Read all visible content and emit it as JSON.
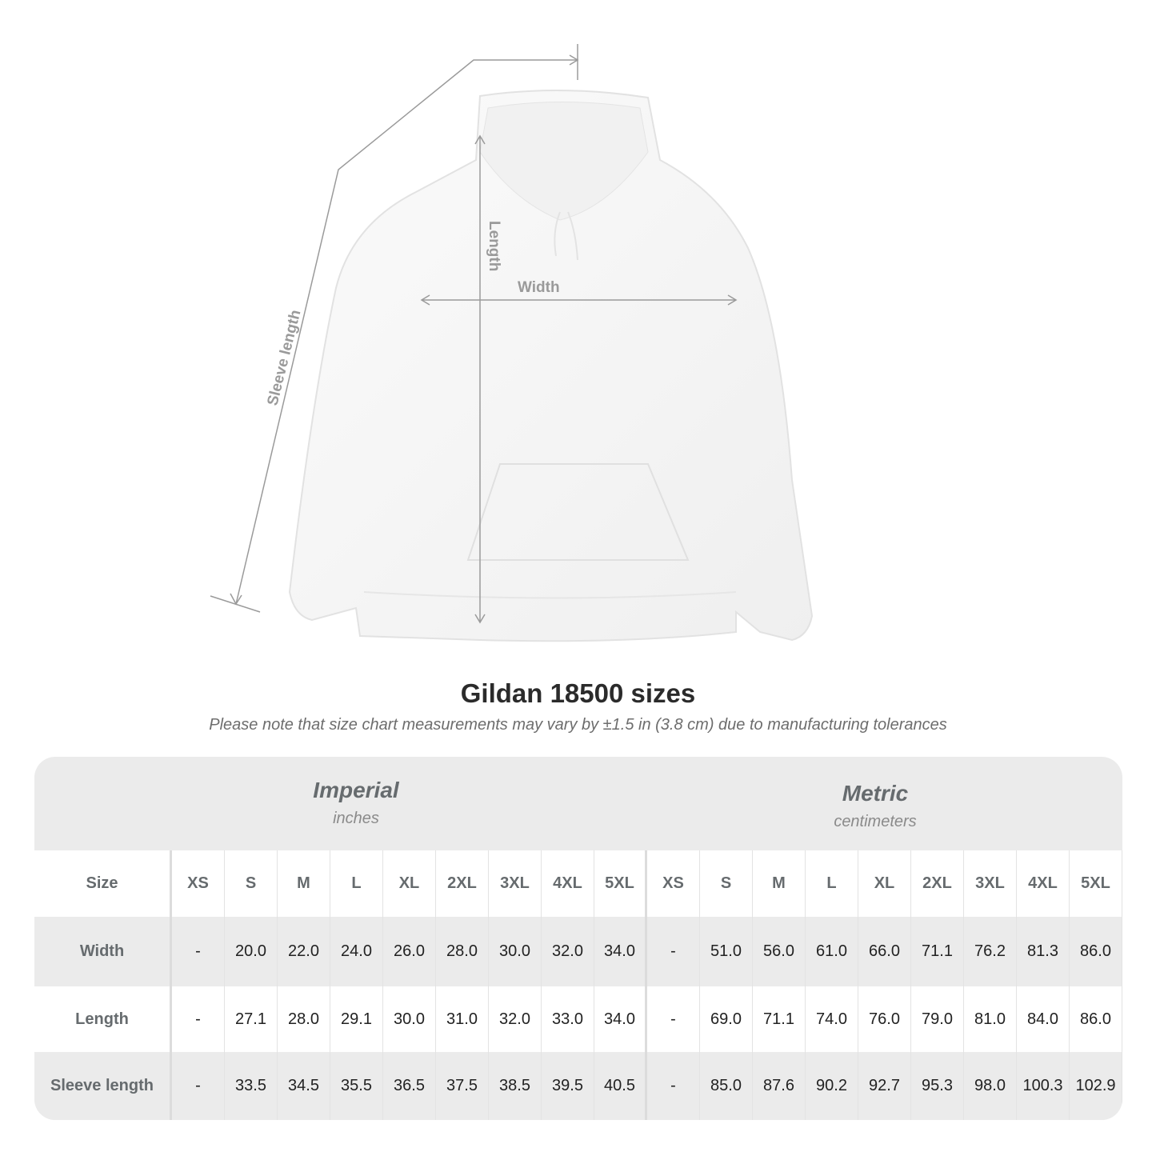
{
  "figure": {
    "labels": {
      "sleeve": "Sleeve length",
      "length": "Length",
      "width": "Width"
    }
  },
  "title": "Gildan 18500 sizes",
  "subtitle": "Please note that size chart measurements may vary by ±1.5 in (3.8 cm) due to manufacturing tolerances",
  "table": {
    "imperial": {
      "title": "Imperial",
      "unit": "inches"
    },
    "metric": {
      "title": "Metric",
      "unit": "centimeters"
    },
    "size_label": "Size",
    "sizes": [
      "XS",
      "S",
      "M",
      "L",
      "XL",
      "2XL",
      "3XL",
      "4XL",
      "5XL"
    ],
    "rows": [
      {
        "label": "Width",
        "imperial": [
          "-",
          "20.0",
          "22.0",
          "24.0",
          "26.0",
          "28.0",
          "30.0",
          "32.0",
          "34.0"
        ],
        "metric": [
          "-",
          "51.0",
          "56.0",
          "61.0",
          "66.0",
          "71.1",
          "76.2",
          "81.3",
          "86.0"
        ]
      },
      {
        "label": "Length",
        "imperial": [
          "-",
          "27.1",
          "28.0",
          "29.1",
          "30.0",
          "31.0",
          "32.0",
          "33.0",
          "34.0"
        ],
        "metric": [
          "-",
          "69.0",
          "71.1",
          "74.0",
          "76.0",
          "79.0",
          "81.0",
          "84.0",
          "86.0"
        ]
      },
      {
        "label": "Sleeve length",
        "imperial": [
          "-",
          "33.5",
          "34.5",
          "35.5",
          "36.5",
          "37.5",
          "38.5",
          "39.5",
          "40.5"
        ],
        "metric": [
          "-",
          "85.0",
          "87.6",
          "90.2",
          "92.7",
          "95.3",
          "98.0",
          "100.3",
          "102.9"
        ]
      }
    ]
  }
}
